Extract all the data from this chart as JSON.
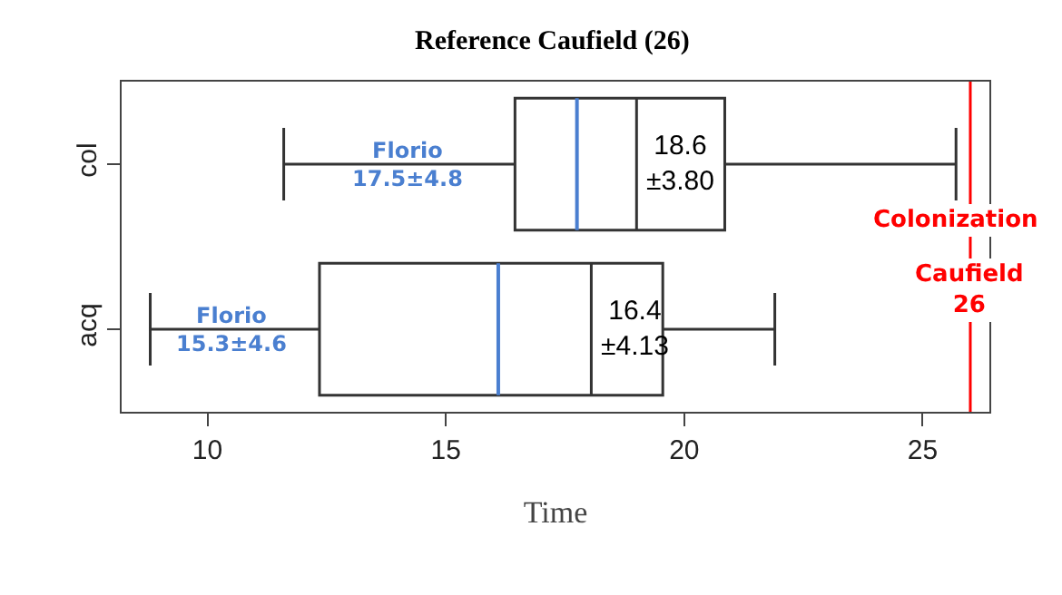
{
  "chart_data": {
    "type": "box",
    "title": "Reference Caufield (26)",
    "xlabel": "Time",
    "orientation": "horizontal",
    "categories": [
      "col",
      "acq"
    ],
    "series": [
      {
        "color": "#333333",
        "boxes": [
          {
            "low": 11.6,
            "q1": 16.45,
            "median": 19.0,
            "q3": 20.85,
            "high": 25.7,
            "mean": 17.75
          },
          {
            "low": 8.8,
            "q1": 12.35,
            "median": 18.05,
            "q3": 19.55,
            "high": 21.9,
            "mean": 16.1
          }
        ]
      }
    ],
    "xlim": [
      8.2,
      26.4
    ],
    "xticks": [
      10,
      15,
      20,
      25
    ],
    "grid": false,
    "ref_lines": [
      {
        "axis": "x",
        "value": 26,
        "label": "Caufield\n26",
        "color": "#ff0000"
      }
    ],
    "annotations": [
      {
        "text": "Florio\n17.5±4.8",
        "x": 14.2,
        "y": "col"
      },
      "18.6\n±3.80",
      {
        "text": "Florio\n15.3±4.6",
        "x": 10.5,
        "y": "acq"
      },
      "16.4\n±4.13",
      "Colonization"
    ]
  }
}
